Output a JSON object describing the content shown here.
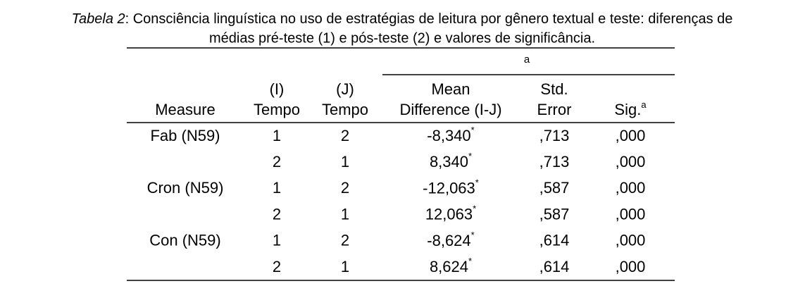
{
  "caption": {
    "label": "Tabela 2",
    "line1": ": Consciência linguística no uso de estratégias de leitura por gênero textual e teste: diferenças de",
    "line2": "médias pré-teste (1) e pós-teste (2) e valores de significância."
  },
  "table": {
    "group_note": "a",
    "headers": [
      [
        "Measure"
      ],
      [
        "(I)",
        "Tempo"
      ],
      [
        "(J)",
        "Tempo"
      ],
      [
        "Mean",
        "Difference (I-J)"
      ],
      [
        "Std.",
        "Error"
      ],
      [
        "Sig."
      ]
    ],
    "sig_note": "a",
    "rows": [
      [
        "Fab (N59)",
        "1",
        "2",
        "-8,340",
        "*",
        ",713",
        ",000"
      ],
      [
        null,
        "2",
        "1",
        "8,340",
        "*",
        ",713",
        ",000"
      ],
      [
        "Cron (N59)",
        "1",
        "2",
        "-12,063",
        "*",
        ",587",
        ",000"
      ],
      [
        null,
        "2",
        "1",
        "12,063",
        "*",
        ",587",
        ",000"
      ],
      [
        "Con (N59)",
        "1",
        "2",
        "-8,624",
        "*",
        ",614",
        ",000"
      ],
      [
        null,
        "2",
        "1",
        "8,624",
        "*",
        ",614",
        ",000"
      ]
    ]
  }
}
